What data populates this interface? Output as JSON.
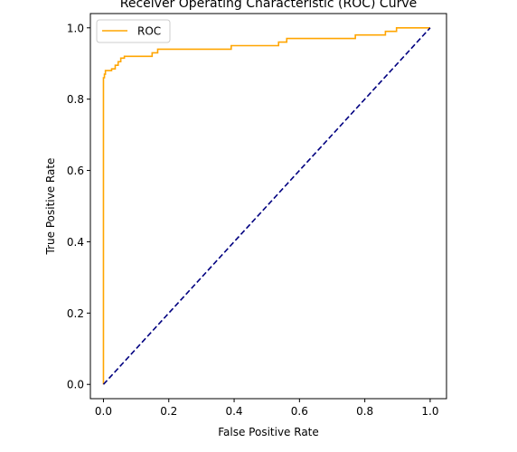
{
  "chart_data": {
    "type": "line",
    "title": "Receiver Operating Characteristic (ROC) Curve",
    "xlabel": "False Positive Rate",
    "ylabel": "True Positive Rate",
    "xlim": [
      -0.04,
      1.05
    ],
    "ylim": [
      -0.04,
      1.04
    ],
    "xticks": [
      0.0,
      0.2,
      0.4,
      0.6,
      0.8,
      1.0
    ],
    "xtick_labels": [
      "0.0",
      "0.2",
      "0.4",
      "0.6",
      "0.8",
      "1.0"
    ],
    "yticks": [
      0.0,
      0.2,
      0.4,
      0.6,
      0.8,
      1.0
    ],
    "ytick_labels": [
      "0.0",
      "0.2",
      "0.4",
      "0.6",
      "0.8",
      "1.0"
    ],
    "grid": false,
    "legend_position": "upper-left",
    "series": [
      {
        "name": "ROC",
        "color": "#ffa500",
        "linestyle": "solid",
        "x": [
          0.0,
          0.0,
          0.003,
          0.003,
          0.006,
          0.006,
          0.025,
          0.025,
          0.036,
          0.036,
          0.045,
          0.045,
          0.053,
          0.053,
          0.064,
          0.064,
          0.149,
          0.149,
          0.166,
          0.166,
          0.391,
          0.391,
          0.536,
          0.536,
          0.561,
          0.561,
          0.771,
          0.771,
          0.863,
          0.863,
          0.897,
          0.897,
          1.0
        ],
        "y": [
          0.0,
          0.86,
          0.86,
          0.87,
          0.87,
          0.88,
          0.88,
          0.885,
          0.885,
          0.895,
          0.895,
          0.905,
          0.905,
          0.915,
          0.915,
          0.92,
          0.92,
          0.93,
          0.93,
          0.94,
          0.94,
          0.95,
          0.95,
          0.96,
          0.96,
          0.97,
          0.97,
          0.98,
          0.98,
          0.99,
          0.99,
          1.0,
          1.0
        ]
      },
      {
        "name": "",
        "color": "#000080",
        "linestyle": "dashed",
        "x": [
          0.0,
          1.0
        ],
        "y": [
          0.0,
          1.0
        ]
      }
    ]
  }
}
